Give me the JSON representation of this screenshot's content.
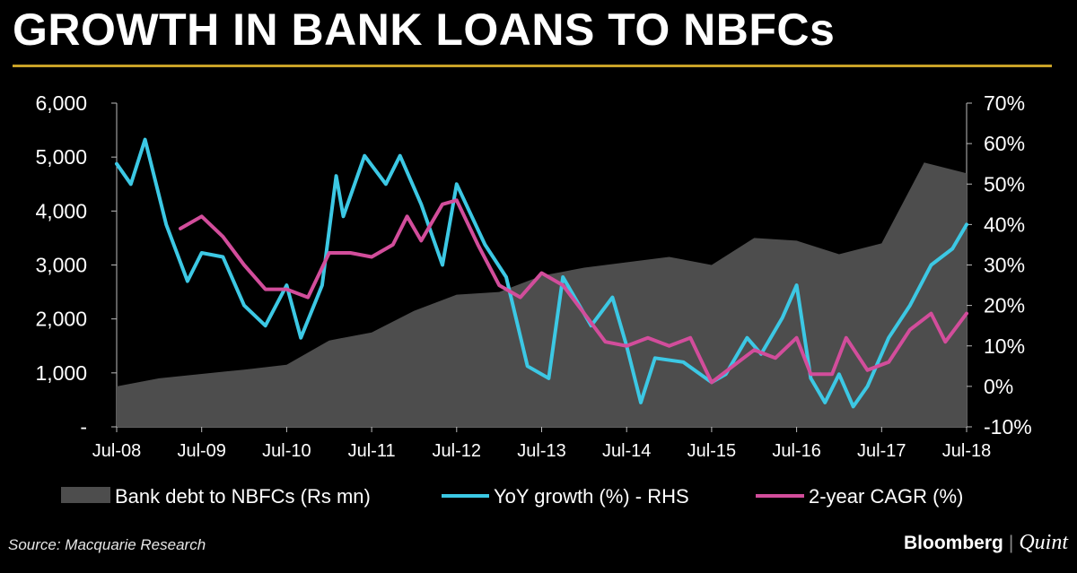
{
  "page": {
    "title": "GROWTH IN BANK LOANS TO NBFCs",
    "source": "Source: Macquarie Research",
    "brand_primary": "Bloomberg",
    "brand_separator": "|",
    "brand_secondary": "Quint"
  },
  "colors": {
    "background": "#000000",
    "rule": "#c9a227",
    "area": "#4d4d4d",
    "yoy": "#3cc8e4",
    "cagr": "#d24d9b"
  },
  "chart_data": {
    "type": "area",
    "title": "GROWTH IN BANK LOANS TO NBFCs",
    "xlabel": "",
    "ylabel": "",
    "y_left": {
      "min": 0,
      "max": 6000,
      "ticks": [
        "-",
        "1,000",
        "2,000",
        "3,000",
        "4,000",
        "5,000",
        "6,000"
      ]
    },
    "y_right": {
      "min": -10,
      "max": 70,
      "ticks": [
        "-10%",
        "0%",
        "10%",
        "20%",
        "30%",
        "40%",
        "50%",
        "60%",
        "70%"
      ]
    },
    "x_ticks": [
      "Jul-08",
      "Jul-09",
      "Jul-10",
      "Jul-11",
      "Jul-12",
      "Jul-13",
      "Jul-14",
      "Jul-15",
      "Jul-16",
      "Jul-17",
      "Jul-18"
    ],
    "x_start": "2008-07",
    "x_end": "2018-07",
    "grid": false,
    "legend_position": "bottom",
    "series": [
      {
        "name": "Bank debt to NBFCs (Rs mn)",
        "axis": "left",
        "style": "area",
        "points": [
          [
            "2008-07",
            750
          ],
          [
            "2009-01",
            900
          ],
          [
            "2009-07",
            980
          ],
          [
            "2010-01",
            1060
          ],
          [
            "2010-07",
            1150
          ],
          [
            "2011-01",
            1600
          ],
          [
            "2011-07",
            1750
          ],
          [
            "2012-01",
            2150
          ],
          [
            "2012-07",
            2450
          ],
          [
            "2013-01",
            2500
          ],
          [
            "2013-07",
            2800
          ],
          [
            "2014-01",
            2950
          ],
          [
            "2014-07",
            3050
          ],
          [
            "2015-01",
            3150
          ],
          [
            "2015-07",
            3000
          ],
          [
            "2016-01",
            3500
          ],
          [
            "2016-07",
            3450
          ],
          [
            "2017-01",
            3200
          ],
          [
            "2017-07",
            3400
          ],
          [
            "2018-01",
            4900
          ],
          [
            "2018-07",
            4700
          ]
        ]
      },
      {
        "name": "YoY growth (%) - RHS",
        "axis": "right",
        "style": "line",
        "points": [
          [
            "2008-07",
            55
          ],
          [
            "2008-09",
            50
          ],
          [
            "2008-11",
            61
          ],
          [
            "2009-02",
            40
          ],
          [
            "2009-05",
            26
          ],
          [
            "2009-07",
            33
          ],
          [
            "2009-10",
            32
          ],
          [
            "2010-01",
            20
          ],
          [
            "2010-04",
            15
          ],
          [
            "2010-07",
            25
          ],
          [
            "2010-09",
            12
          ],
          [
            "2010-12",
            25
          ],
          [
            "2011-02",
            52
          ],
          [
            "2011-03",
            42
          ],
          [
            "2011-06",
            57
          ],
          [
            "2011-09",
            50
          ],
          [
            "2011-11",
            57
          ],
          [
            "2012-02",
            45
          ],
          [
            "2012-05",
            30
          ],
          [
            "2012-07",
            50
          ],
          [
            "2012-11",
            35
          ],
          [
            "2013-02",
            27
          ],
          [
            "2013-05",
            5
          ],
          [
            "2013-08",
            2
          ],
          [
            "2013-10",
            27
          ],
          [
            "2014-02",
            15
          ],
          [
            "2014-05",
            22
          ],
          [
            "2014-07",
            10
          ],
          [
            "2014-09",
            -4
          ],
          [
            "2014-11",
            7
          ],
          [
            "2015-03",
            6
          ],
          [
            "2015-07",
            1
          ],
          [
            "2015-09",
            3
          ],
          [
            "2015-12",
            12
          ],
          [
            "2016-02",
            8
          ],
          [
            "2016-05",
            17
          ],
          [
            "2016-07",
            25
          ],
          [
            "2016-09",
            2
          ],
          [
            "2016-11",
            -4
          ],
          [
            "2017-01",
            3
          ],
          [
            "2017-03",
            -5
          ],
          [
            "2017-05",
            0
          ],
          [
            "2017-08",
            12
          ],
          [
            "2017-11",
            20
          ],
          [
            "2018-02",
            30
          ],
          [
            "2018-05",
            34
          ],
          [
            "2018-07",
            40
          ]
        ]
      },
      {
        "name": "2-year CAGR (%)",
        "axis": "right",
        "style": "line",
        "points": [
          [
            "2009-04",
            39
          ],
          [
            "2009-07",
            42
          ],
          [
            "2009-10",
            37
          ],
          [
            "2010-01",
            30
          ],
          [
            "2010-04",
            24
          ],
          [
            "2010-07",
            24
          ],
          [
            "2010-10",
            22
          ],
          [
            "2011-01",
            33
          ],
          [
            "2011-04",
            33
          ],
          [
            "2011-07",
            32
          ],
          [
            "2011-10",
            35
          ],
          [
            "2011-12",
            42
          ],
          [
            "2012-02",
            36
          ],
          [
            "2012-05",
            45
          ],
          [
            "2012-07",
            46
          ],
          [
            "2012-10",
            35
          ],
          [
            "2013-01",
            25
          ],
          [
            "2013-04",
            22
          ],
          [
            "2013-07",
            28
          ],
          [
            "2013-10",
            25
          ],
          [
            "2014-01",
            18
          ],
          [
            "2014-04",
            11
          ],
          [
            "2014-07",
            10
          ],
          [
            "2014-10",
            12
          ],
          [
            "2015-01",
            10
          ],
          [
            "2015-04",
            12
          ],
          [
            "2015-07",
            1
          ],
          [
            "2015-10",
            5
          ],
          [
            "2016-01",
            9
          ],
          [
            "2016-04",
            7
          ],
          [
            "2016-07",
            12
          ],
          [
            "2016-09",
            3
          ],
          [
            "2016-12",
            3
          ],
          [
            "2017-02",
            12
          ],
          [
            "2017-05",
            4
          ],
          [
            "2017-08",
            6
          ],
          [
            "2017-11",
            14
          ],
          [
            "2018-02",
            18
          ],
          [
            "2018-04",
            11
          ],
          [
            "2018-07",
            18
          ]
        ]
      }
    ]
  }
}
